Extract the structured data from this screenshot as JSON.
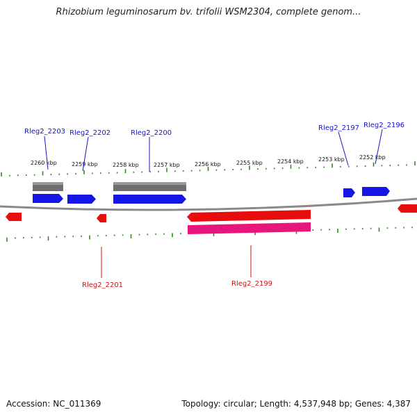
{
  "title": "Rhizobium leguminosarum bv. trifolii WSM2304, complete genom...",
  "footer": {
    "accession": "Accession: NC_011369",
    "summary": "Topology: circular; Length: 4,537,948 bp; Genes: 4,387"
  },
  "colors": {
    "forward_gene": "#1515e8",
    "reverse_gene": "#e80d0d",
    "reverse_rna": "#e8157a",
    "forward_feature": "#6f6f6f",
    "tick": "#2e8b1e",
    "backbone": "#8a8a8a",
    "forward_label": "#1414c8",
    "reverse_label": "#c81414"
  },
  "ruler": {
    "unit": "kbp",
    "labels": [
      "2260 kbp",
      "2259 kbp",
      "2258 kbp",
      "2257 kbp",
      "2256 kbp",
      "2255 kbp",
      "2254 kbp",
      "2253 kbp",
      "2252 kbp"
    ]
  },
  "genes": {
    "forward_labels": [
      "Rleg2_2203",
      "Rleg2_2202",
      "Rleg2_2200",
      "Rleg2_2197",
      "Rleg2_2196"
    ],
    "reverse_labels": [
      "Rleg2_2201",
      "Rleg2_2199"
    ]
  }
}
